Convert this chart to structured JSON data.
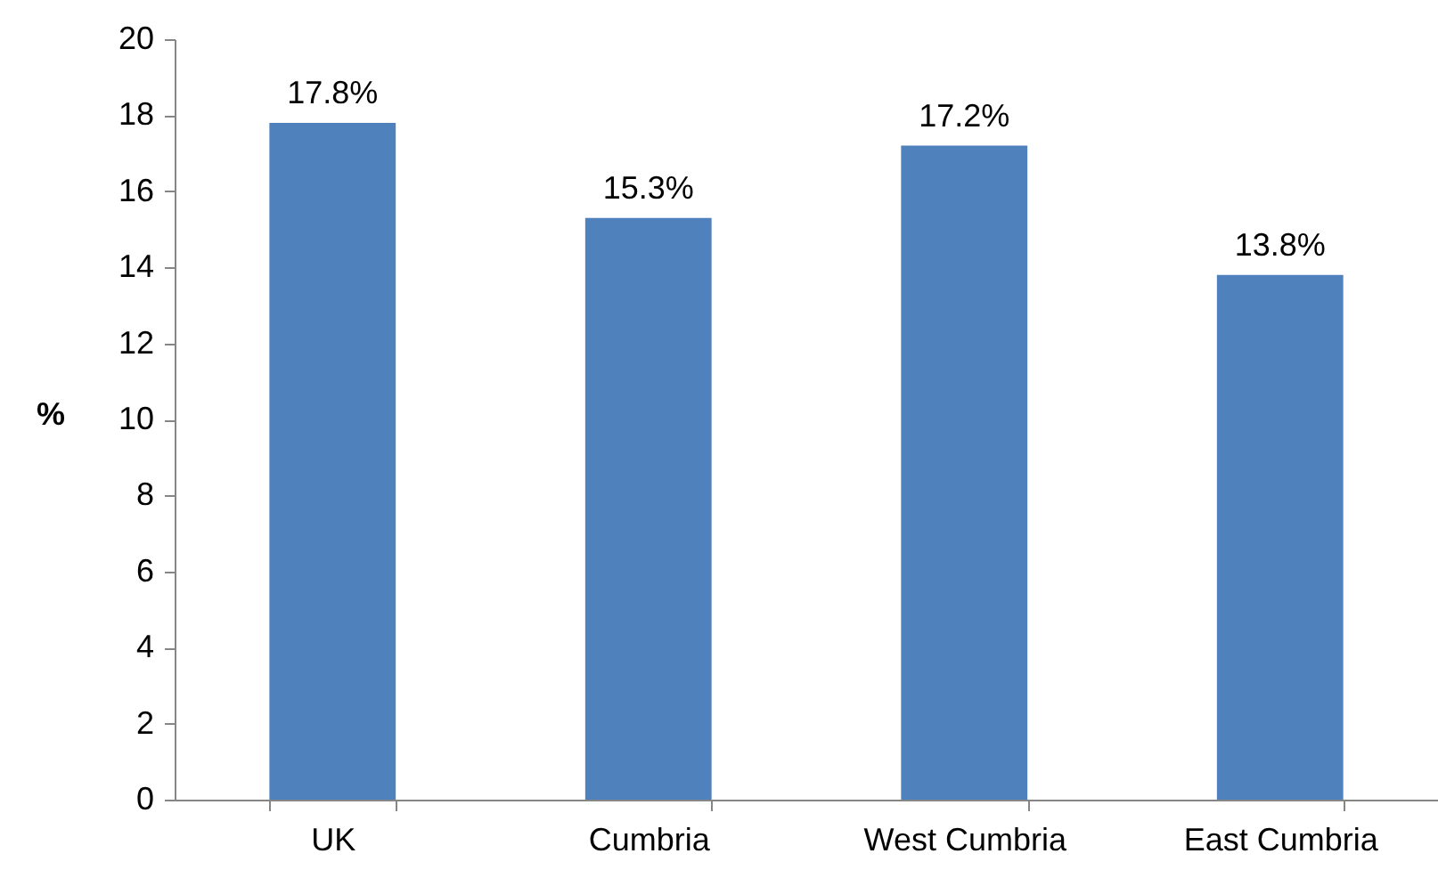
{
  "chart_data": {
    "type": "bar",
    "ylabel": "%",
    "categories": [
      "UK",
      "Cumbria",
      "West Cumbria",
      "East Cumbria"
    ],
    "values": [
      17.8,
      15.3,
      17.2,
      13.8
    ],
    "color": "#4f81bd",
    "value_labels": [
      "17.8%",
      "15.3%",
      "17.2%",
      "13.8%"
    ],
    "ylim": [
      0,
      20
    ],
    "yticks": [
      0,
      2,
      4,
      6,
      8,
      10,
      12,
      14,
      16,
      18,
      20
    ],
    "grid": false
  }
}
